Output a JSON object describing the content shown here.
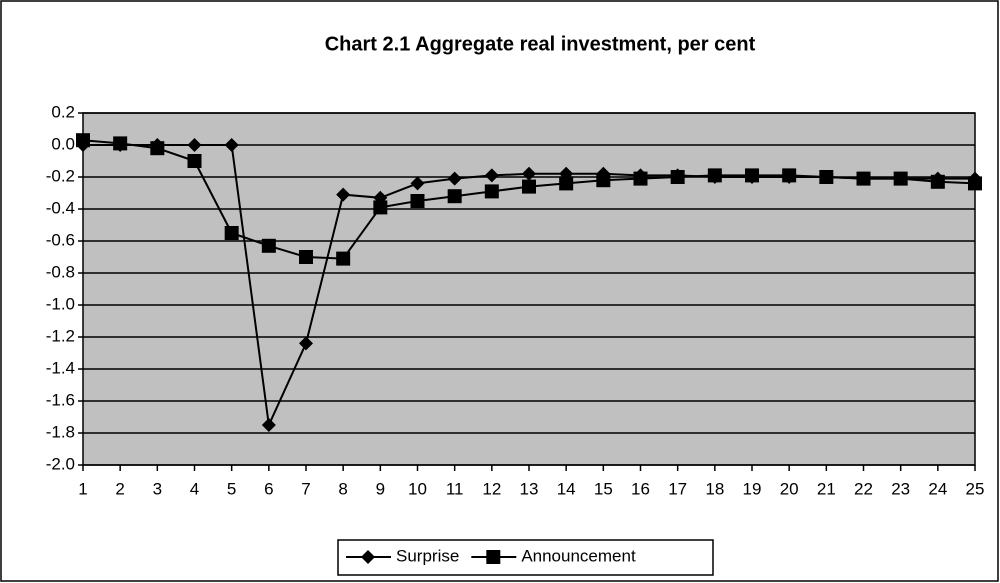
{
  "chart_data": {
    "type": "line",
    "title": "Chart 2.1 Aggregate real investment, per cent",
    "x": [
      1,
      2,
      3,
      4,
      5,
      6,
      7,
      8,
      9,
      10,
      11,
      12,
      13,
      14,
      15,
      16,
      17,
      18,
      19,
      20,
      21,
      22,
      23,
      24,
      25
    ],
    "xlim": [
      1,
      25
    ],
    "xticks": [
      1,
      2,
      3,
      4,
      5,
      6,
      7,
      8,
      9,
      10,
      11,
      12,
      13,
      14,
      15,
      16,
      17,
      18,
      19,
      20,
      21,
      22,
      23,
      24,
      25
    ],
    "ylim": [
      -2,
      0.2
    ],
    "yticks": [
      0.2,
      {
        "value": 0,
        "label": "0.0"
      },
      -0.2,
      -0.4,
      -0.6,
      -0.8,
      {
        "value": -1,
        "label": "-1.0"
      },
      -1.2,
      -1.4,
      -1.6,
      -1.8,
      {
        "value": -2,
        "label": "-2.0"
      }
    ],
    "grid": true,
    "legend": "bottom",
    "series": [
      {
        "name": "Surprise",
        "color": "#000000",
        "marker": "diamond",
        "values": [
          0.0,
          0.0,
          0.0,
          0.0,
          0.0,
          -1.75,
          -1.24,
          -0.31,
          -0.33,
          -0.24,
          -0.21,
          -0.19,
          -0.18,
          -0.18,
          -0.18,
          -0.19,
          -0.19,
          -0.2,
          -0.2,
          -0.2,
          -0.2,
          -0.21,
          -0.21,
          -0.21,
          -0.21
        ]
      },
      {
        "name": "Announcement",
        "color": "#000000",
        "marker": "square",
        "values": [
          0.03,
          0.01,
          -0.02,
          -0.1,
          -0.55,
          -0.63,
          -0.7,
          -0.71,
          -0.39,
          -0.35,
          -0.32,
          -0.29,
          -0.26,
          -0.24,
          -0.22,
          -0.21,
          -0.2,
          -0.19,
          -0.19,
          -0.19,
          -0.2,
          -0.21,
          -0.21,
          -0.23,
          -0.24
        ]
      }
    ]
  }
}
